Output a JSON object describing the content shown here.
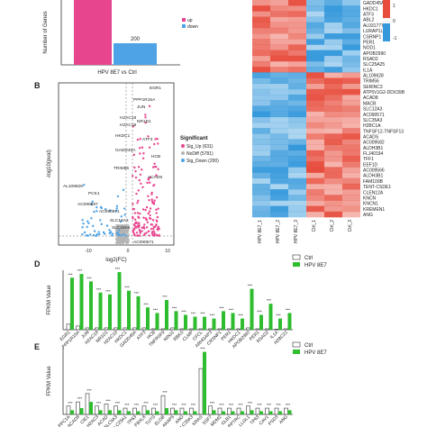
{
  "panel_labels": {
    "b": "B",
    "d": "D",
    "e": "E"
  },
  "colors": {
    "up": "#e8458f",
    "down": "#4da3e6",
    "nodiff": "#b5b5b5",
    "ctrl": "#ffffff",
    "hpv": "#2ebd2e",
    "heat_high": "#e74c3c",
    "heat_low": "#3498db"
  },
  "chart_data": [
    {
      "id": "A",
      "type": "bar",
      "ylabel": "Number of Genes",
      "categories": [
        "HPV 8E7 vs Ctrl"
      ],
      "series": [
        {
          "name": "up",
          "values": [
            631
          ]
        },
        {
          "name": "down",
          "values": [
            200
          ]
        }
      ],
      "data_labels": [
        "200"
      ],
      "legend": [
        "up",
        "down"
      ]
    },
    {
      "id": "B",
      "type": "scatter",
      "xlabel": "log2(FC)",
      "ylabel": "-log10(pval)",
      "xlim": [
        -15,
        15
      ],
      "legend_title": "Significant",
      "legend": [
        "Sig_Up (631)",
        "NoDiff (5781)",
        "Sig_Down (200)"
      ],
      "x_ticks": [
        "-10",
        "0",
        "10"
      ],
      "annotations": [
        "EGR1",
        "PPP1R15A",
        "JUN",
        "H2AC18",
        "NR1D1",
        "H2AC19",
        "HKDC1",
        "ATF3",
        "GADD45A",
        "HCB",
        "TRIM56",
        "ACAD8",
        "AL109628",
        "PCK1",
        "AC090597",
        "AC090571",
        "SLC16A3",
        "SLC16A6",
        "AC090571"
      ]
    },
    {
      "id": "C",
      "type": "heatmap",
      "colorbar_ticks": [
        "1",
        "0",
        "-1"
      ],
      "columns": [
        "HPV 8E7_1",
        "HPV 8E7_2",
        "HPV 8E7_3",
        "Ctrl_1",
        "Ctrl_2",
        "Ctrl_3"
      ],
      "rows": [
        "GADD45A",
        "HKDC1",
        "ATF3",
        "ABL2",
        "AL031777",
        "LURAP1L",
        "CSRNP1",
        "PER1",
        "NOD1",
        "APOB2990",
        "RSAD2",
        "SLC25A25",
        "IL1A",
        "AL109628",
        "TRIM56",
        "SERINC3",
        "ATP5V1G2-DDX39B",
        "ACAD8",
        "MACB",
        "SLC12A3",
        "AC090571",
        "SLC35A3",
        "H2BC1A",
        "TNFSF12-TNFSF13",
        "ACADS",
        "AC009582",
        "ALDH3B1",
        "FLJ40194",
        "TFF1",
        "EEF1D",
        "AC009566",
        "ALDH3B1",
        "FAM109B",
        "TENT-CSDE1",
        "CLEN12A",
        "KNCN",
        "KNCN1",
        "KREMEN1",
        "ANG"
      ]
    },
    {
      "id": "D",
      "type": "bar",
      "ylabel": "FPKM Value",
      "legend": [
        "Ctrl",
        "HPV 8E7"
      ],
      "categories": [
        "EGR1",
        "PPP1R15A",
        "JUN",
        "H2AC18",
        "NR1D1",
        "H2AC19",
        "HKDC1",
        "GADD45A",
        "ATF3",
        "HCB",
        "TNFRSF9",
        "NINJ1",
        "RBKS",
        "CLMP",
        "CFCL",
        "ARHGAP3",
        "CRSNP1",
        "PER1",
        "HKDC1",
        "APOB2990",
        "PER1",
        "RSAD2",
        "IL1A",
        "H2BC21"
      ],
      "series": [
        {
          "name": "Ctrl",
          "values": [
            3,
            2,
            1,
            1,
            1,
            1,
            1,
            1,
            1,
            0.5,
            0.5,
            1,
            0.5,
            0.5,
            0.5,
            0.5,
            0.5,
            0.5,
            0.5,
            1,
            0.5,
            0.5,
            0.3,
            0.5
          ]
        },
        {
          "name": "HPV 8E7",
          "values": [
            28,
            30,
            26,
            20,
            19,
            31,
            21,
            18,
            12,
            9,
            16,
            10,
            8,
            7,
            7,
            6,
            10,
            9,
            6,
            22,
            8,
            14,
            6,
            9
          ]
        }
      ],
      "sig": "***"
    },
    {
      "id": "E",
      "type": "bar",
      "ylabel": "FPKM Value",
      "legend": [
        "Ctrl",
        "HPV 8E7"
      ],
      "categories": [
        "PPC1A",
        "ACAD8",
        "CIE1",
        "H2AC3",
        "ACAD",
        "SLC5A3",
        "SLC25A1",
        "TP63",
        "FBXL8",
        "TUTS",
        "ELOB",
        "AKAP5",
        "ANG",
        "SLC35A3",
        "KRAS",
        "SSF7",
        "MDM2",
        "GLB1",
        "PPTRC",
        "LLGL1",
        "TP63",
        "CAV1",
        "PSD3",
        "ANG"
      ],
      "series": [
        {
          "name": "Ctrl",
          "values": [
            4,
            6,
            10,
            4,
            5,
            4,
            3,
            3,
            4,
            3,
            9,
            3,
            3,
            3,
            22,
            4,
            3,
            3,
            3,
            4,
            3,
            3,
            3,
            3
          ]
        },
        {
          "name": "HPV 8E7",
          "values": [
            2,
            3,
            6,
            2,
            2,
            2,
            1.5,
            1.5,
            2,
            1.5,
            3,
            2,
            1.5,
            1.5,
            30,
            2,
            1.5,
            1.5,
            1.5,
            2,
            1.5,
            1.5,
            1.5,
            2
          ]
        }
      ],
      "sig": "***"
    }
  ]
}
